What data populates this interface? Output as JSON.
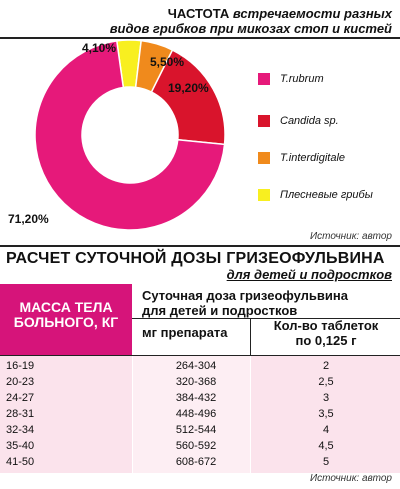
{
  "header": {
    "title_strong": "ЧАСТОТА",
    "title_rest": "встречаемости разных",
    "title_line2": "видов грибков при микозах стоп и кистей"
  },
  "chart_data": {
    "type": "pie",
    "title": "ЧАСТОТА встречаемости разных видов грибков при микозах стоп и кистей",
    "categories": [
      "T.rubrum",
      "Candida sp.",
      "T.interdigitale",
      "Плесневые грибы"
    ],
    "values": [
      71.2,
      19.2,
      5.5,
      4.1
    ],
    "value_labels": [
      "71,20%",
      "19,20%",
      "5,50%",
      "4,10%"
    ],
    "colors": [
      "#e6197a",
      "#d9142c",
      "#f08a1c",
      "#f8ef20"
    ],
    "legend_position": "right",
    "donut": true
  },
  "legend": {
    "items": [
      {
        "label": "T.rubrum",
        "color": "#e6197a"
      },
      {
        "label": "Candida sp.",
        "color": "#d9142c"
      },
      {
        "label": "T.interdigitale",
        "color": "#f08a1c"
      },
      {
        "label": "Плесневые грибы",
        "color": "#f8ef20"
      }
    ]
  },
  "source1": "Источник: автор",
  "table": {
    "title": "РАСЧЕТ СУТОЧНОЙ ДОЗЫ ГРИЗЕОФУЛЬВИНА",
    "subtitle": "для детей и подростков",
    "col1_header_line1": "МАССА ТЕЛА",
    "col1_header_line2": "БОЛЬНОГО, КГ",
    "dose_header_line1": "Суточная доза гризеофульвина",
    "dose_header_line2": "для детей и подростков",
    "col2_header": "мг препарата",
    "col3_header_line1": "Кол-во таблеток",
    "col3_header_line2": "по 0,125 г",
    "rows": [
      {
        "mass": "16-19",
        "mg": "264-304",
        "tablets": "2"
      },
      {
        "mass": "20-23",
        "mg": "320-368",
        "tablets": "2,5"
      },
      {
        "mass": "24-27",
        "mg": "384-432",
        "tablets": "3"
      },
      {
        "mass": "28-31",
        "mg": "448-496",
        "tablets": "3,5"
      },
      {
        "mass": "32-34",
        "mg": "512-544",
        "tablets": "4"
      },
      {
        "mass": "35-40",
        "mg": "560-592",
        "tablets": "4,5"
      },
      {
        "mass": "41-50",
        "mg": "608-672",
        "tablets": "5"
      }
    ]
  },
  "source2": "Источник: автор"
}
